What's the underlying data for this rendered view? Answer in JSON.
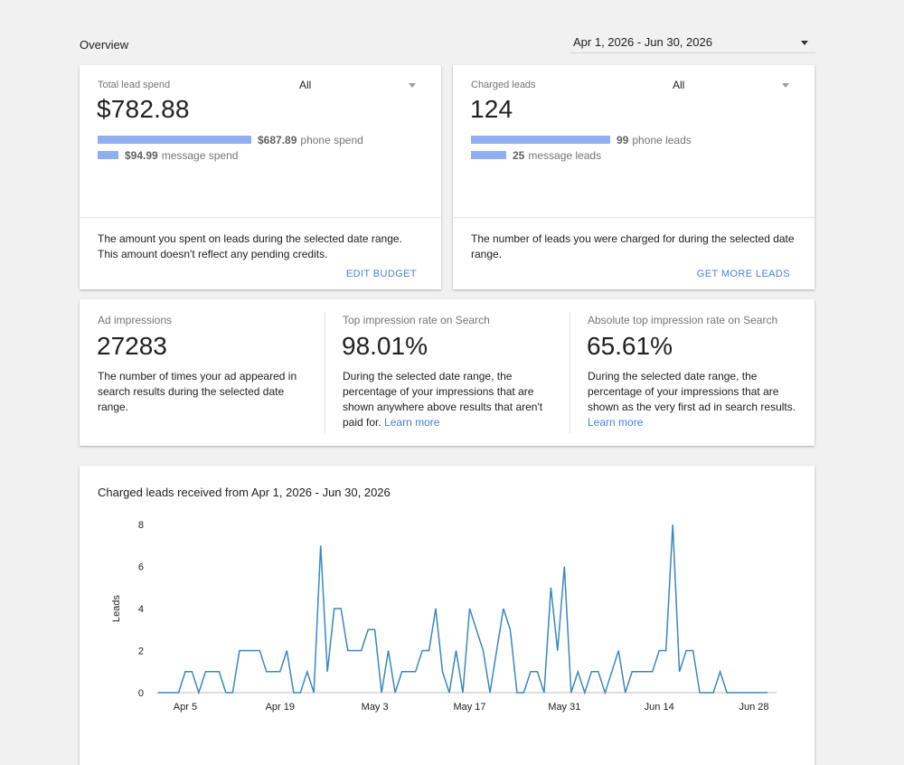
{
  "header": {
    "title": "Overview",
    "date_range": "Apr 1, 2026 - Jun 30, 2026"
  },
  "spend_card": {
    "label": "Total lead spend",
    "filter": "All",
    "total": "$782.88",
    "phone_amount": "$687.89",
    "phone_text": "phone spend",
    "phone_fraction": 0.879,
    "message_amount": "$94.99",
    "message_text": "message spend",
    "message_fraction": 0.121,
    "description": "The amount you spent on leads during the selected date range. This amount doesn't reflect any pending credits.",
    "action": "EDIT BUDGET"
  },
  "leads_card": {
    "label": "Charged leads",
    "filter": "All",
    "total": "124",
    "phone_amount": "99",
    "phone_text": "phone leads",
    "phone_fraction": 0.798,
    "message_amount": "25",
    "message_text": "message leads",
    "message_fraction": 0.202,
    "description": "The number of leads you were charged for during the selected date range.",
    "action": "GET MORE LEADS"
  },
  "metrics": {
    "impressions": {
      "label": "Ad impressions",
      "value": "27283",
      "description": "The number of times your ad appeared in search results during the selected date range."
    },
    "top_rate": {
      "label": "Top impression rate on Search",
      "value": "98.01%",
      "description": "During the selected date range, the percentage of your impressions that are shown anywhere above results that aren't paid for.",
      "link": "Learn more"
    },
    "abs_top_rate": {
      "label": "Absolute top impression rate on Search",
      "value": "65.61%",
      "description": "During the selected date range, the percentage of your impressions that are shown as the very first ad in search results.",
      "link": "Learn more"
    }
  },
  "chart_card": {
    "title": "Charged leads received from Apr 1, 2026 - Jun 30, 2026"
  },
  "colors": {
    "bar": "#90aef2",
    "line": "#3a87c0",
    "link": "#4b7ee0"
  },
  "chart_data": {
    "type": "line",
    "title": "Charged leads received from Apr 1, 2026 - Jun 30, 2026",
    "xlabel": "",
    "ylabel": "Leads",
    "ylim": [
      0,
      8
    ],
    "yticks": [
      0,
      2,
      4,
      6,
      8
    ],
    "xticks": [
      "Apr 5",
      "Apr 19",
      "May 3",
      "May 17",
      "May 31",
      "Jun 14",
      "Jun 28"
    ],
    "x_start": "Apr 1, 2026",
    "grid": false,
    "series": [
      {
        "values": [
          0,
          0,
          0,
          0,
          1,
          1,
          0,
          1,
          1,
          1,
          0,
          0,
          2,
          2,
          2,
          2,
          1,
          1,
          1,
          2,
          0,
          0,
          1,
          0,
          7,
          1,
          4,
          4,
          2,
          2,
          2,
          3,
          3,
          0,
          2,
          0,
          1,
          1,
          1,
          2,
          2,
          4,
          1,
          0,
          2,
          0,
          4,
          3,
          2,
          0,
          2,
          4,
          3,
          0,
          0,
          1,
          1,
          0,
          5,
          2,
          6,
          0,
          1,
          0,
          1,
          1,
          0,
          1,
          2,
          0,
          1,
          1,
          1,
          1,
          2,
          2,
          8,
          1,
          2,
          2,
          0,
          0,
          0,
          1,
          0,
          0,
          0,
          0,
          0,
          0,
          0
        ]
      }
    ]
  }
}
